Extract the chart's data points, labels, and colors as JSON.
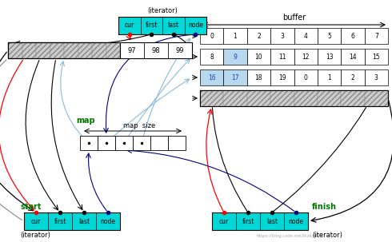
{
  "bg_color": "#ffffff",
  "cyan_color": "#00d8d8",
  "hatch_color": "#cccccc",
  "blue_highlight": "#b8d8f0",
  "buffer_row1": [
    "0",
    "1",
    "2",
    "3",
    "4",
    "5",
    "6",
    "7"
  ],
  "buffer_row2": [
    "8",
    "9",
    "10",
    "11",
    "12",
    "13",
    "14",
    "15"
  ],
  "buffer_row3": [
    "16",
    "17",
    "18",
    "19",
    "0",
    "1",
    "2",
    "3"
  ],
  "buffer_top_row": [
    "97",
    "98",
    "99"
  ],
  "iterator_cells": [
    "cur",
    "first",
    "last",
    "node"
  ],
  "map_n": 6,
  "map_filled": 4,
  "watermark": "https://blog.csdn.net/lkzky001"
}
